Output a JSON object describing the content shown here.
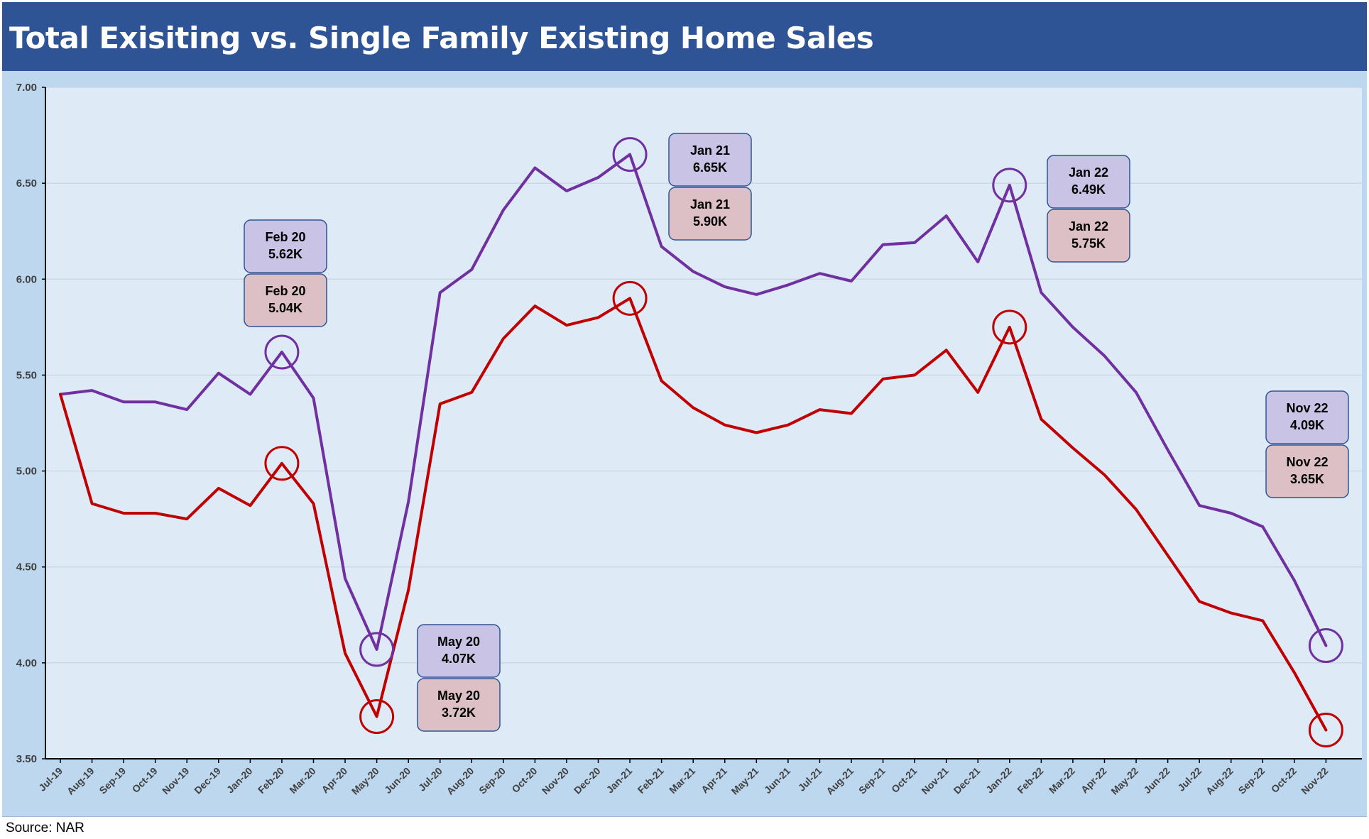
{
  "title": "Total Exisiting vs. Single Family Existing Home Sales",
  "source": "Source: NAR",
  "colors": {
    "title_bg": "#2f5496",
    "outer_bg": "#bdd7ee",
    "plot_bg": "#deebf7",
    "total_line": "#7030a0",
    "single_family_line": "#c00000",
    "total_box": "#c9c3e6",
    "single_family_box": "#dcc0c6",
    "box_border": "#2f5496"
  },
  "chart_data": {
    "type": "line",
    "ylim": [
      3.5,
      7.0
    ],
    "yticks": [
      "3.50",
      "4.00",
      "4.50",
      "5.00",
      "5.50",
      "6.00",
      "6.50",
      "7.00"
    ],
    "grid": true,
    "categories": [
      "Jul-19",
      "Aug-19",
      "Sep-19",
      "Oct-19",
      "Nov-19",
      "Dec-19",
      "Jan-20",
      "Feb-20",
      "Mar-20",
      "Apr-20",
      "May-20",
      "Jun-20",
      "Jul-20",
      "Aug-20",
      "Sep-20",
      "Oct-20",
      "Nov-20",
      "Dec-20",
      "Jan-21",
      "Feb-21",
      "Mar-21",
      "Apr-21",
      "May-21",
      "Jun-21",
      "Jul-21",
      "Aug-21",
      "Sep-21",
      "Oct-21",
      "Nov-21",
      "Dec-21",
      "Jan-22",
      "Feb-22",
      "Mar-22",
      "Apr-22",
      "May-22",
      "Jun-22",
      "Jul-22",
      "Aug-22",
      "Sep-22",
      "Oct-22",
      "Nov-22"
    ],
    "series": [
      {
        "key": "total",
        "values": [
          5.4,
          5.42,
          5.36,
          5.36,
          5.32,
          5.51,
          5.4,
          5.62,
          5.38,
          4.44,
          4.07,
          4.84,
          5.93,
          6.05,
          6.36,
          6.58,
          6.46,
          6.53,
          6.65,
          6.17,
          6.04,
          5.96,
          5.92,
          5.97,
          6.03,
          5.99,
          6.18,
          6.19,
          6.33,
          6.09,
          6.49,
          5.93,
          5.75,
          5.6,
          5.41,
          5.11,
          4.82,
          4.78,
          4.71,
          4.43,
          4.09
        ]
      },
      {
        "key": "single_family",
        "values": [
          5.4,
          4.83,
          4.78,
          4.78,
          4.75,
          4.91,
          4.82,
          5.04,
          4.83,
          4.05,
          3.72,
          4.38,
          5.35,
          5.41,
          5.69,
          5.86,
          5.76,
          5.8,
          5.9,
          5.47,
          5.33,
          5.24,
          5.2,
          5.24,
          5.32,
          5.3,
          5.48,
          5.5,
          5.63,
          5.41,
          5.75,
          5.27,
          5.12,
          4.98,
          4.8,
          4.56,
          4.32,
          4.26,
          4.22,
          3.95,
          3.65
        ]
      }
    ],
    "annotations": [
      {
        "index": 7,
        "total_date": "Feb 20",
        "total_value": "5.62K",
        "sf_date": "Feb 20",
        "sf_value": "5.04K"
      },
      {
        "index": 10,
        "total_date": "May 20",
        "total_value": "4.07K",
        "sf_date": "May 20",
        "sf_value": "3.72K"
      },
      {
        "index": 18,
        "total_date": "Jan 21",
        "total_value": "6.65K",
        "sf_date": "Jan 21",
        "sf_value": "5.90K"
      },
      {
        "index": 30,
        "total_date": "Jan 22",
        "total_value": "6.49K",
        "sf_date": "Jan 22",
        "sf_value": "5.75K"
      },
      {
        "index": 40,
        "total_date": "Nov 22",
        "total_value": "4.09K",
        "sf_date": "Nov 22",
        "sf_value": "3.65K"
      }
    ]
  }
}
